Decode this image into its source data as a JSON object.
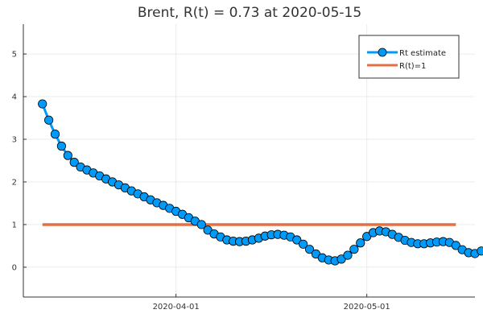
{
  "chart_data": {
    "type": "line",
    "title": "Brent, R(t) = 0.73 at 2020-05-15",
    "xlabel": "",
    "ylabel": "",
    "x_start": "2020-03-11",
    "x_end": "2020-05-15",
    "xlim": [
      "2020-03-08",
      "2020-05-18"
    ],
    "ylim": [
      -0.7,
      5.7
    ],
    "yticks": [
      0,
      1,
      2,
      3,
      4,
      5
    ],
    "ytick_labels": [
      "0",
      "1",
      "2",
      "3",
      "4",
      "5"
    ],
    "xticks": [
      "2020-04-01",
      "2020-05-01"
    ],
    "xtick_labels": [
      "2020-04-01",
      "2020-05-01"
    ],
    "grid": true,
    "legend_position": "top-right",
    "series": [
      {
        "name": "Rt estimate",
        "color": "#009af9",
        "marker": "circle",
        "values": [
          3.83,
          3.45,
          3.12,
          2.84,
          2.62,
          2.46,
          2.35,
          2.28,
          2.21,
          2.14,
          2.07,
          2.0,
          1.93,
          1.86,
          1.79,
          1.72,
          1.65,
          1.58,
          1.51,
          1.45,
          1.38,
          1.31,
          1.24,
          1.16,
          1.08,
          1.0,
          0.87,
          0.78,
          0.71,
          0.64,
          0.61,
          0.6,
          0.61,
          0.64,
          0.68,
          0.73,
          0.76,
          0.77,
          0.75,
          0.71,
          0.64,
          0.54,
          0.42,
          0.31,
          0.22,
          0.17,
          0.15,
          0.19,
          0.28,
          0.42,
          0.57,
          0.72,
          0.81,
          0.85,
          0.83,
          0.77,
          0.7,
          0.63,
          0.58,
          0.55,
          0.55,
          0.57,
          0.59,
          0.6,
          0.58,
          0.51,
          0.41,
          0.34,
          0.32,
          0.38,
          0.52,
          0.73
        ]
      },
      {
        "name": "R(t)=1",
        "color": "#e26f46",
        "marker": "none",
        "values": [
          1,
          1
        ]
      }
    ]
  }
}
